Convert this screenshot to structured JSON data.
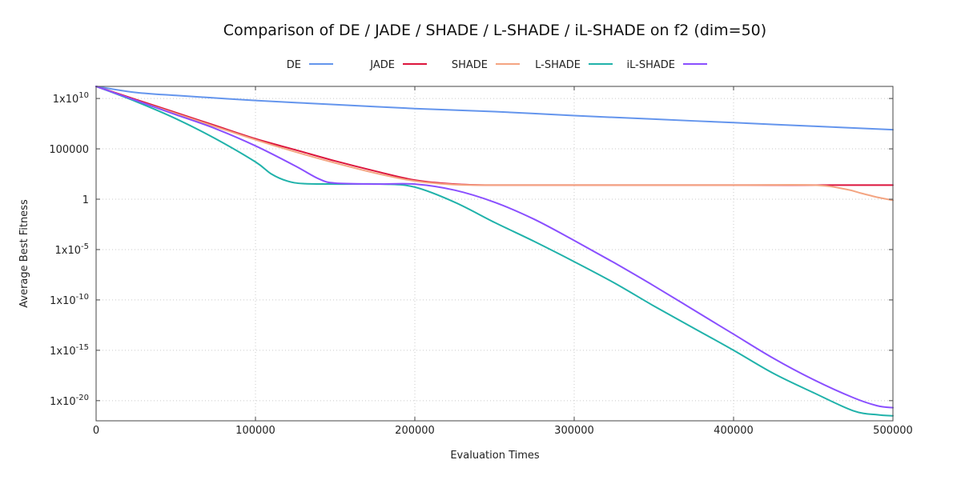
{
  "chart_data": {
    "type": "line",
    "title": "Comparison of DE / JADE / SHADE / L-SHADE / iL-SHADE on f2 (dim=50)",
    "xlabel": "Evaluation Times",
    "ylabel": "Average Best Fitness",
    "xlim": [
      0,
      500000
    ],
    "y_log10_range": [
      -22,
      11.2
    ],
    "y_scale": "log",
    "grid": true,
    "legend_position": "top",
    "x_ticks": [
      {
        "value": 0,
        "label": "0"
      },
      {
        "value": 100000,
        "label": "100000"
      },
      {
        "value": 200000,
        "label": "200000"
      },
      {
        "value": 300000,
        "label": "300000"
      },
      {
        "value": 400000,
        "label": "400000"
      },
      {
        "value": 500000,
        "label": "500000"
      }
    ],
    "y_ticks": [
      {
        "log10": 10,
        "base": "1x10",
        "exp": "10"
      },
      {
        "log10": 5,
        "base": "100000",
        "exp": ""
      },
      {
        "log10": 0,
        "base": "1",
        "exp": ""
      },
      {
        "log10": -5,
        "base": "1x10",
        "exp": "-5"
      },
      {
        "log10": -10,
        "base": "1x10",
        "exp": "-10"
      },
      {
        "log10": -15,
        "base": "1x10",
        "exp": "-15"
      },
      {
        "log10": -20,
        "base": "1x10",
        "exp": "-20"
      }
    ],
    "series": [
      {
        "name": "DE",
        "color": "#6495ed",
        "x": [
          0,
          25000,
          50000,
          100000,
          150000,
          200000,
          250000,
          300000,
          350000,
          400000,
          450000,
          500000
        ],
        "log10_y": [
          11.2,
          10.6,
          10.3,
          9.8,
          9.4,
          9.0,
          8.7,
          8.3,
          7.95,
          7.6,
          7.25,
          6.9
        ]
      },
      {
        "name": "JADE",
        "color": "#dc143c",
        "x": [
          0,
          25000,
          50000,
          75000,
          100000,
          125000,
          150000,
          175000,
          200000,
          225000,
          250000,
          300000,
          400000,
          500000
        ],
        "log10_y": [
          11.2,
          9.9,
          8.6,
          7.3,
          6.0,
          4.9,
          3.8,
          2.8,
          1.9,
          1.5,
          1.4,
          1.4,
          1.4,
          1.4
        ]
      },
      {
        "name": "SHADE",
        "color": "#f4a582",
        "x": [
          0,
          25000,
          50000,
          75000,
          100000,
          125000,
          150000,
          175000,
          200000,
          225000,
          250000,
          300000,
          400000,
          450000,
          470000,
          480000,
          490000,
          500000
        ],
        "log10_y": [
          11.2,
          9.8,
          8.5,
          7.2,
          5.9,
          4.7,
          3.6,
          2.6,
          1.8,
          1.45,
          1.4,
          1.4,
          1.4,
          1.4,
          1.0,
          0.6,
          0.2,
          -0.1
        ]
      },
      {
        "name": "L-SHADE",
        "color": "#20b2aa",
        "x": [
          0,
          25000,
          50000,
          75000,
          100000,
          110000,
          120000,
          130000,
          150000,
          180000,
          200000,
          225000,
          250000,
          275000,
          300000,
          325000,
          350000,
          375000,
          400000,
          425000,
          450000,
          475000,
          490000,
          500000
        ],
        "log10_y": [
          11.2,
          9.7,
          8.0,
          6.0,
          3.7,
          2.5,
          1.8,
          1.55,
          1.5,
          1.5,
          1.2,
          -0.3,
          -2.3,
          -4.2,
          -6.2,
          -8.3,
          -10.6,
          -12.8,
          -15.0,
          -17.3,
          -19.2,
          -21.0,
          -21.4,
          -21.5
        ]
      },
      {
        "name": "iL-SHADE",
        "color": "#8a4fff",
        "x": [
          0,
          25000,
          50000,
          75000,
          100000,
          125000,
          140000,
          150000,
          175000,
          200000,
          225000,
          250000,
          275000,
          300000,
          325000,
          350000,
          375000,
          400000,
          425000,
          450000,
          475000,
          490000,
          500000
        ],
        "log10_y": [
          11.2,
          9.8,
          8.4,
          7.0,
          5.3,
          3.3,
          2.0,
          1.6,
          1.5,
          1.5,
          0.9,
          -0.3,
          -2.0,
          -4.1,
          -6.3,
          -8.6,
          -11.0,
          -13.4,
          -15.8,
          -17.9,
          -19.7,
          -20.5,
          -20.7
        ]
      }
    ]
  }
}
